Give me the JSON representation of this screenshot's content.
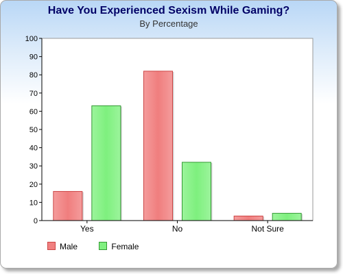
{
  "chart_data": {
    "type": "bar",
    "title": "Have You Experienced Sexism While Gaming?",
    "subtitle": "By Percentage",
    "categories": [
      "Yes",
      "No",
      "Not Sure"
    ],
    "series": [
      {
        "name": "Male",
        "values": [
          16,
          82,
          2.5
        ],
        "color": "#f08080",
        "stroke": "#cc4444"
      },
      {
        "name": "Female",
        "values": [
          63,
          32,
          4
        ],
        "color": "#80f080",
        "stroke": "#339933"
      }
    ],
    "ylim": [
      0,
      100
    ],
    "yticks": [
      "0",
      "10",
      "20",
      "30",
      "40",
      "50",
      "60",
      "70",
      "80",
      "90",
      "100"
    ],
    "grid": false,
    "legend_position": "bottom-left"
  }
}
